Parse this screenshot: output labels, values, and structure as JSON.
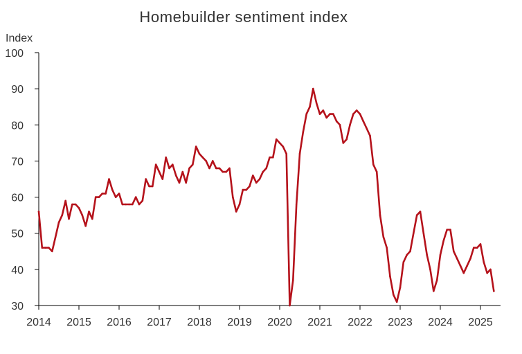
{
  "chart_data": {
    "type": "line",
    "title": "Homebuilder sentiment index",
    "ylabel": "Index",
    "xlabel": "",
    "ylim": [
      30,
      100
    ],
    "yticks": [
      30,
      40,
      50,
      60,
      70,
      80,
      90,
      100
    ],
    "xlim": [
      2014,
      2025.5
    ],
    "xticks": [
      "2014",
      "2015",
      "2016",
      "2017",
      "2018",
      "2019",
      "2020",
      "2021",
      "2022",
      "2023",
      "2024",
      "2025"
    ],
    "grid": false,
    "line_color": "#B5121B",
    "axis_color": "#000000",
    "series": [
      {
        "name": "",
        "frequency": "monthly",
        "start": "2014-01",
        "values": [
          56,
          46,
          46,
          46,
          45,
          49,
          53,
          55,
          59,
          54,
          58,
          58,
          57,
          55,
          52,
          56,
          54,
          60,
          60,
          61,
          61,
          65,
          62,
          60,
          61,
          58,
          58,
          58,
          58,
          60,
          58,
          59,
          65,
          63,
          63,
          69,
          67,
          65,
          71,
          68,
          69,
          66,
          64,
          67,
          64,
          68,
          69,
          74,
          72,
          71,
          70,
          68,
          70,
          68,
          68,
          67,
          67,
          68,
          60,
          56,
          58,
          62,
          62,
          63,
          66,
          64,
          65,
          67,
          68,
          71,
          71,
          76,
          75,
          74,
          72,
          30,
          37,
          58,
          72,
          78,
          83,
          85,
          90,
          86,
          83,
          84,
          82,
          83,
          83,
          81,
          80,
          75,
          76,
          80,
          83,
          84,
          83,
          81,
          79,
          77,
          69,
          67,
          55,
          49,
          46,
          38,
          33,
          31,
          35,
          42,
          44,
          45,
          50,
          55,
          56,
          50,
          44,
          40,
          34,
          37,
          44,
          48,
          51,
          51,
          45,
          43,
          41,
          39,
          41,
          43,
          46,
          46,
          47,
          42,
          39,
          40,
          34
        ]
      }
    ]
  }
}
